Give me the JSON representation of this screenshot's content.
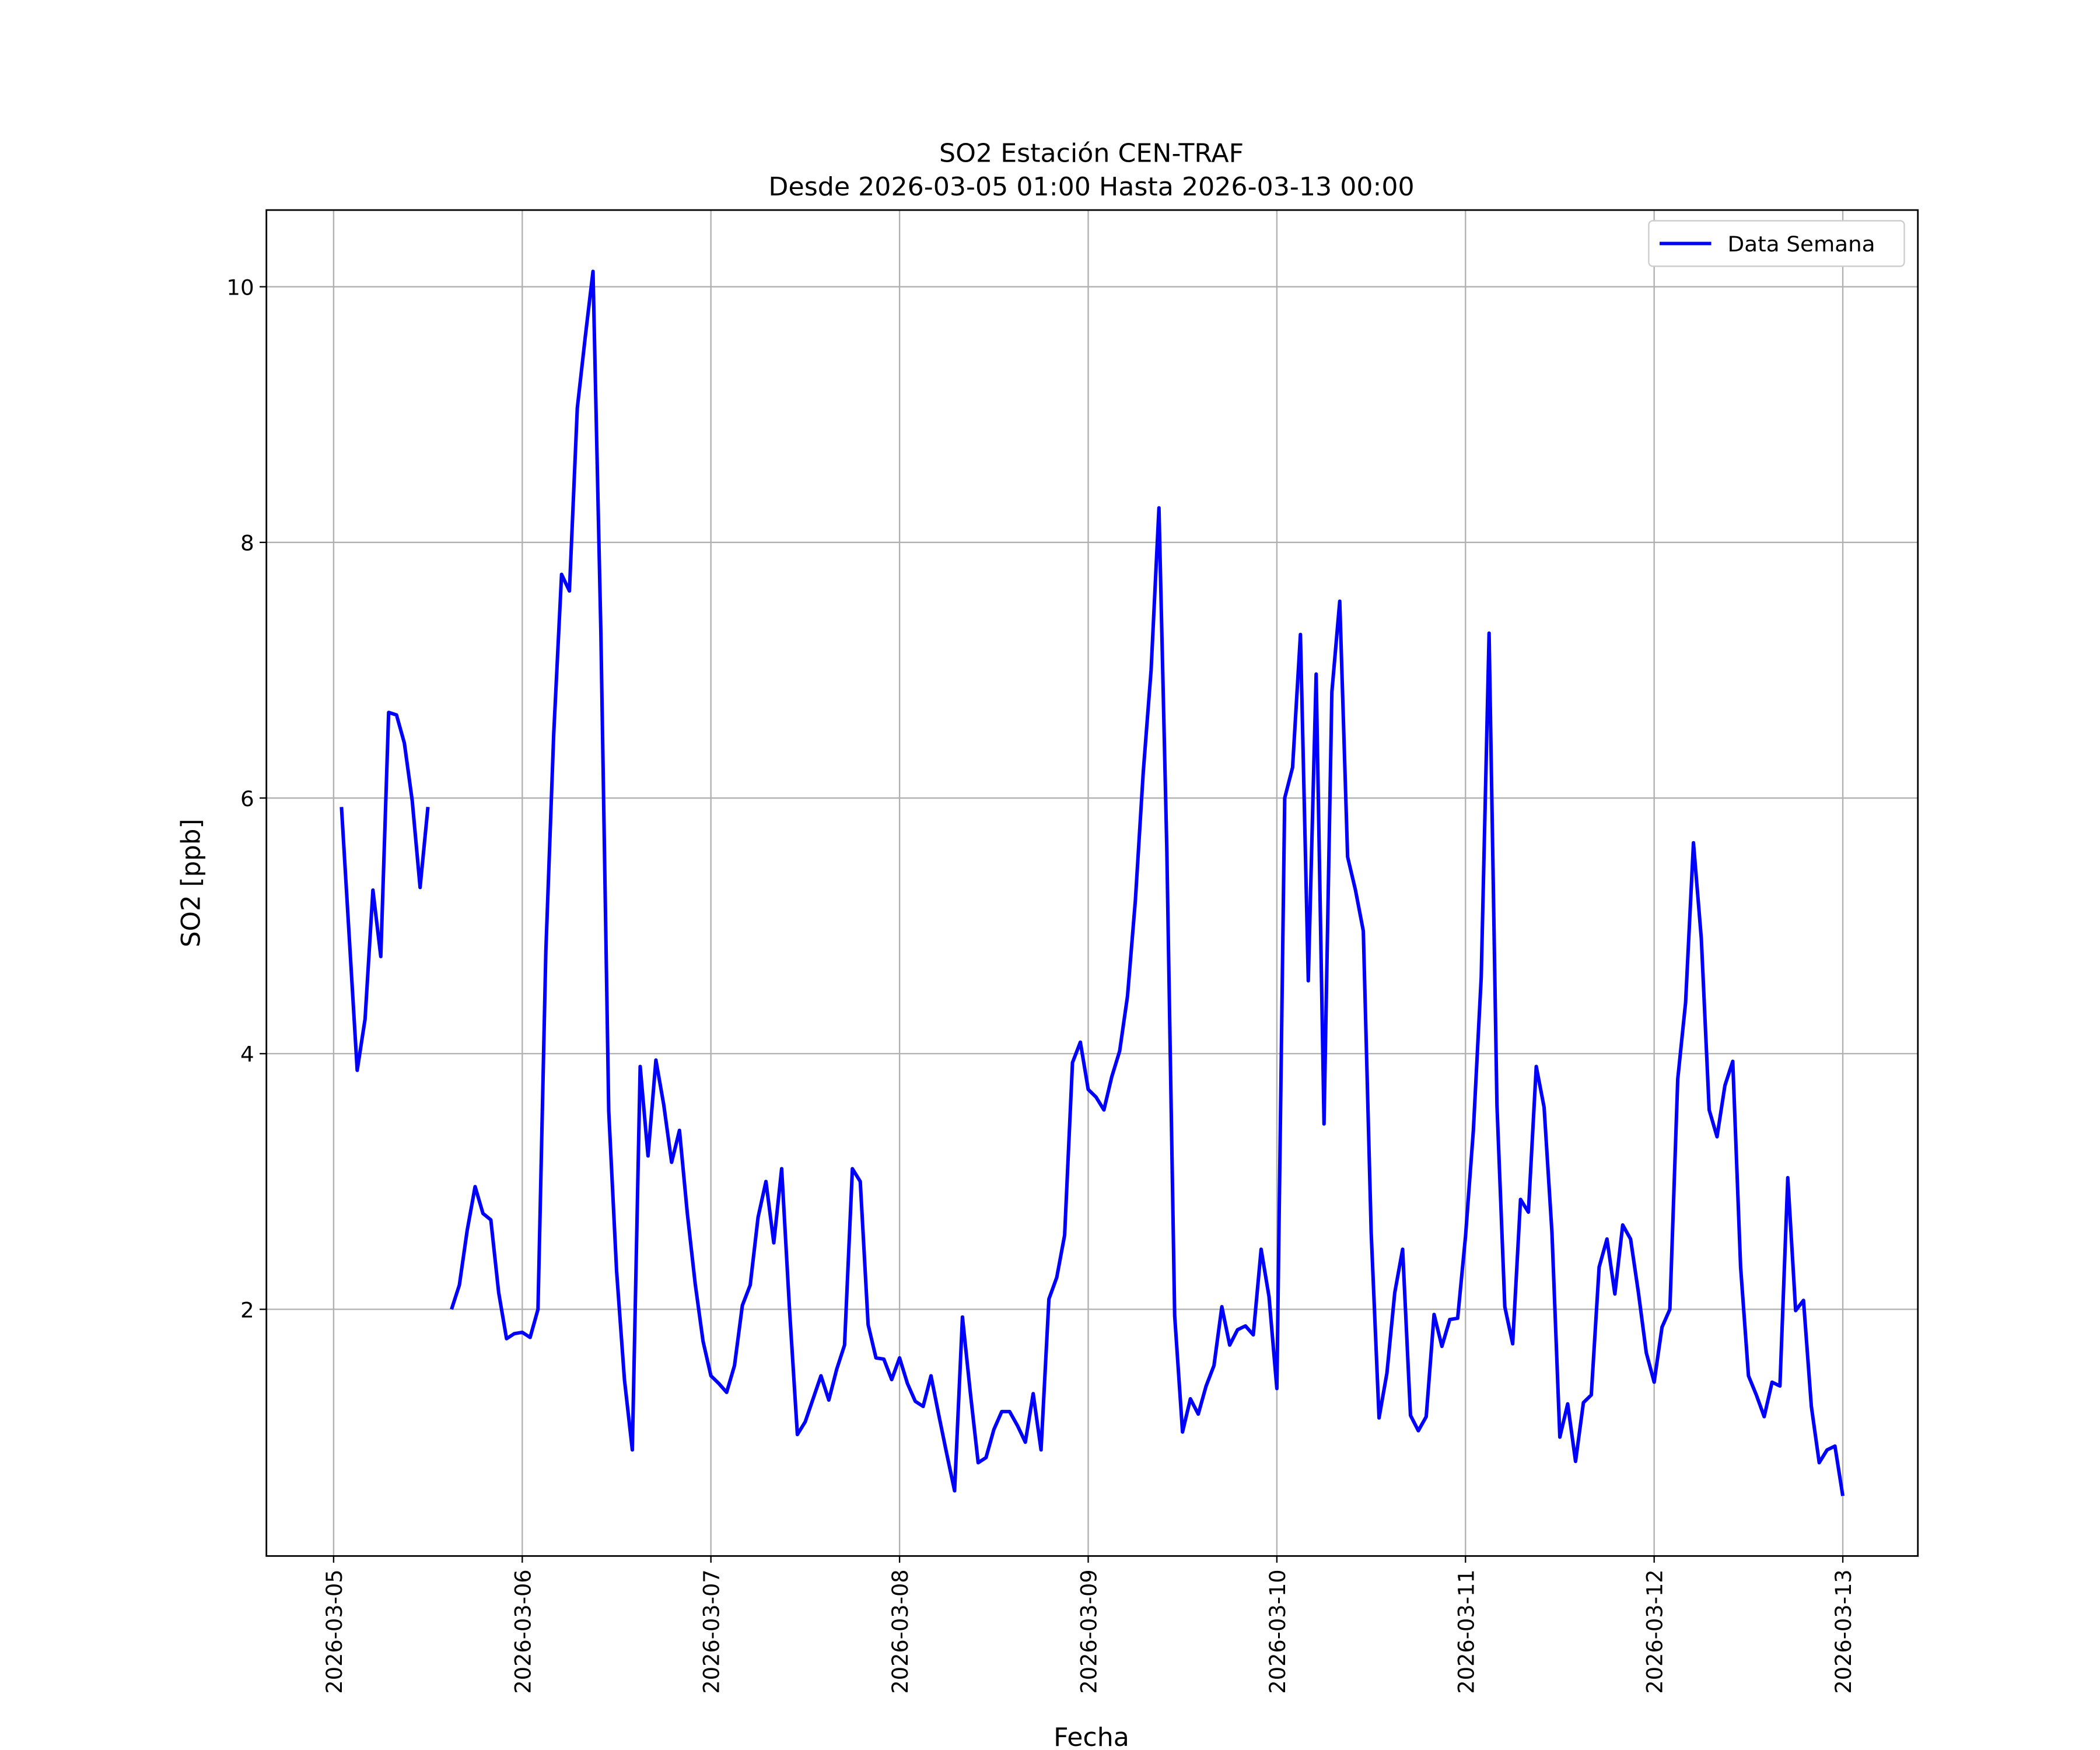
{
  "chart_data": {
    "type": "line",
    "title": "SO2 Estación CEN-TRAF",
    "subtitle": "Desde 2026-03-05 01:00 Hasta 2026-03-13 00:00",
    "xlabel": "Fecha",
    "ylabel": "SO2 [ppb]",
    "xlim": [
      "2026-03-04 15:27",
      "2026-03-13 09:33"
    ],
    "xticks": [
      "2026-03-05",
      "2026-03-06",
      "2026-03-07",
      "2026-03-08",
      "2026-03-09",
      "2026-03-10",
      "2026-03-11",
      "2026-03-12",
      "2026-03-13"
    ],
    "ylim": [
      0.07,
      10.6
    ],
    "yticks": [
      2,
      4,
      6,
      8,
      10
    ],
    "grid": true,
    "legend": "upper right",
    "x": [
      "2026-03-05 01:00",
      "2026-03-05 02:00",
      "2026-03-05 03:00",
      "2026-03-05 04:00",
      "2026-03-05 05:00",
      "2026-03-05 06:00",
      "2026-03-05 07:00",
      "2026-03-05 08:00",
      "2026-03-05 09:00",
      "2026-03-05 10:00",
      "2026-03-05 11:00",
      "2026-03-05 12:00",
      "2026-03-05 13:00",
      "2026-03-05 14:00",
      "2026-03-05 15:00",
      "2026-03-05 16:00",
      "2026-03-05 17:00",
      "2026-03-05 18:00",
      "2026-03-05 19:00",
      "2026-03-05 20:00",
      "2026-03-05 21:00",
      "2026-03-05 22:00",
      "2026-03-05 23:00",
      "2026-03-06 00:00",
      "2026-03-06 01:00",
      "2026-03-06 02:00",
      "2026-03-06 03:00",
      "2026-03-06 04:00",
      "2026-03-06 05:00",
      "2026-03-06 06:00",
      "2026-03-06 07:00",
      "2026-03-06 08:00",
      "2026-03-06 09:00",
      "2026-03-06 10:00",
      "2026-03-06 11:00",
      "2026-03-06 12:00",
      "2026-03-06 13:00",
      "2026-03-06 14:00",
      "2026-03-06 15:00",
      "2026-03-06 16:00",
      "2026-03-06 17:00",
      "2026-03-06 18:00",
      "2026-03-06 19:00",
      "2026-03-06 20:00",
      "2026-03-06 21:00",
      "2026-03-06 22:00",
      "2026-03-06 23:00",
      "2026-03-07 00:00",
      "2026-03-07 01:00",
      "2026-03-07 02:00",
      "2026-03-07 03:00",
      "2026-03-07 04:00",
      "2026-03-07 05:00",
      "2026-03-07 06:00",
      "2026-03-07 07:00",
      "2026-03-07 08:00",
      "2026-03-07 09:00",
      "2026-03-07 10:00",
      "2026-03-07 11:00",
      "2026-03-07 12:00",
      "2026-03-07 13:00",
      "2026-03-07 14:00",
      "2026-03-07 15:00",
      "2026-03-07 16:00",
      "2026-03-07 17:00",
      "2026-03-07 18:00",
      "2026-03-07 19:00",
      "2026-03-07 20:00",
      "2026-03-07 21:00",
      "2026-03-07 22:00",
      "2026-03-07 23:00",
      "2026-03-08 00:00",
      "2026-03-08 01:00",
      "2026-03-08 02:00",
      "2026-03-08 03:00",
      "2026-03-08 04:00",
      "2026-03-08 05:00",
      "2026-03-08 06:00",
      "2026-03-08 07:00",
      "2026-03-08 08:00",
      "2026-03-08 09:00",
      "2026-03-08 10:00",
      "2026-03-08 11:00",
      "2026-03-08 12:00",
      "2026-03-08 13:00",
      "2026-03-08 14:00",
      "2026-03-08 15:00",
      "2026-03-08 16:00",
      "2026-03-08 17:00",
      "2026-03-08 18:00",
      "2026-03-08 19:00",
      "2026-03-08 20:00",
      "2026-03-08 21:00",
      "2026-03-08 22:00",
      "2026-03-08 23:00",
      "2026-03-09 00:00",
      "2026-03-09 01:00",
      "2026-03-09 02:00",
      "2026-03-09 03:00",
      "2026-03-09 04:00",
      "2026-03-09 05:00",
      "2026-03-09 06:00",
      "2026-03-09 07:00",
      "2026-03-09 08:00",
      "2026-03-09 09:00",
      "2026-03-09 10:00",
      "2026-03-09 11:00",
      "2026-03-09 12:00",
      "2026-03-09 13:00",
      "2026-03-09 14:00",
      "2026-03-09 15:00",
      "2026-03-09 16:00",
      "2026-03-09 17:00",
      "2026-03-09 18:00",
      "2026-03-09 19:00",
      "2026-03-09 20:00",
      "2026-03-09 21:00",
      "2026-03-09 22:00",
      "2026-03-09 23:00",
      "2026-03-10 00:00",
      "2026-03-10 01:00",
      "2026-03-10 02:00",
      "2026-03-10 03:00",
      "2026-03-10 04:00",
      "2026-03-10 05:00",
      "2026-03-10 06:00",
      "2026-03-10 07:00",
      "2026-03-10 08:00",
      "2026-03-10 09:00",
      "2026-03-10 10:00",
      "2026-03-10 11:00",
      "2026-03-10 12:00",
      "2026-03-10 13:00",
      "2026-03-10 14:00",
      "2026-03-10 15:00",
      "2026-03-10 16:00",
      "2026-03-10 17:00",
      "2026-03-10 18:00",
      "2026-03-10 19:00",
      "2026-03-10 20:00",
      "2026-03-10 21:00",
      "2026-03-10 22:00",
      "2026-03-10 23:00",
      "2026-03-11 00:00",
      "2026-03-11 01:00",
      "2026-03-11 02:00",
      "2026-03-11 03:00",
      "2026-03-11 04:00",
      "2026-03-11 05:00",
      "2026-03-11 06:00",
      "2026-03-11 07:00",
      "2026-03-11 08:00",
      "2026-03-11 09:00",
      "2026-03-11 10:00",
      "2026-03-11 11:00",
      "2026-03-11 12:00",
      "2026-03-11 13:00",
      "2026-03-11 14:00",
      "2026-03-11 15:00",
      "2026-03-11 16:00",
      "2026-03-11 17:00",
      "2026-03-11 18:00",
      "2026-03-11 19:00",
      "2026-03-11 20:00",
      "2026-03-11 21:00",
      "2026-03-11 22:00",
      "2026-03-11 23:00",
      "2026-03-12 00:00",
      "2026-03-12 01:00",
      "2026-03-12 02:00",
      "2026-03-12 03:00",
      "2026-03-12 04:00",
      "2026-03-12 05:00",
      "2026-03-12 06:00",
      "2026-03-12 07:00",
      "2026-03-12 08:00",
      "2026-03-12 09:00",
      "2026-03-12 10:00",
      "2026-03-12 11:00",
      "2026-03-12 12:00",
      "2026-03-12 13:00",
      "2026-03-12 14:00",
      "2026-03-12 15:00",
      "2026-03-12 16:00",
      "2026-03-12 17:00",
      "2026-03-12 18:00",
      "2026-03-12 19:00",
      "2026-03-12 20:00",
      "2026-03-12 21:00",
      "2026-03-12 22:00",
      "2026-03-12 23:00",
      "2026-03-13 00:00"
    ],
    "series": [
      {
        "name": "Data Semana",
        "color": "#0000ff",
        "values": [
          5.93,
          4.9,
          3.87,
          4.27,
          5.28,
          4.76,
          6.67,
          6.65,
          6.43,
          5.98,
          5.3,
          5.93,
          null,
          null,
          2.0,
          2.19,
          2.62,
          2.96,
          2.75,
          2.7,
          2.13,
          1.77,
          1.81,
          1.82,
          1.78,
          2.0,
          4.8,
          6.5,
          7.75,
          7.62,
          9.05,
          9.6,
          10.12,
          7.3,
          3.55,
          2.3,
          1.45,
          0.9,
          3.9,
          3.2,
          3.95,
          3.6,
          3.15,
          3.4,
          2.75,
          2.2,
          1.75,
          1.48,
          1.42,
          1.35,
          1.56,
          2.03,
          2.19,
          2.72,
          3.0,
          2.52,
          3.1,
          2.0,
          1.02,
          1.12,
          1.3,
          1.48,
          1.29,
          1.53,
          1.72,
          3.1,
          3.0,
          1.88,
          1.62,
          1.61,
          1.45,
          1.62,
          1.42,
          1.28,
          1.24,
          1.48,
          1.17,
          0.87,
          0.58,
          1.94,
          1.35,
          0.8,
          0.84,
          1.06,
          1.2,
          1.2,
          1.09,
          0.96,
          1.34,
          0.9,
          2.08,
          2.25,
          2.58,
          3.93,
          4.09,
          3.72,
          3.66,
          3.56,
          3.82,
          4.02,
          4.45,
          5.2,
          6.2,
          7.0,
          8.27,
          5.6,
          1.95,
          1.04,
          1.3,
          1.18,
          1.4,
          1.56,
          2.02,
          1.72,
          1.84,
          1.87,
          1.8,
          2.47,
          2.1,
          1.38,
          6.0,
          6.24,
          7.28,
          4.57,
          6.97,
          3.45,
          6.83,
          7.54,
          5.54,
          5.28,
          4.96,
          2.6,
          1.15,
          1.5,
          2.13,
          2.47,
          1.17,
          1.05,
          1.16,
          1.96,
          1.71,
          1.92,
          1.93,
          2.57,
          3.4,
          4.6,
          7.29,
          3.6,
          2.02,
          1.73,
          2.86,
          2.76,
          3.9,
          3.58,
          2.6,
          1.0,
          1.26,
          0.81,
          1.27,
          1.33,
          2.33,
          2.55,
          2.12,
          2.66,
          2.55,
          2.13,
          1.66,
          1.43,
          1.86,
          2.0,
          3.8,
          4.4,
          5.65,
          4.9,
          3.56,
          3.35,
          3.75,
          3.94,
          2.33,
          1.48,
          1.33,
          1.16,
          1.43,
          1.4,
          3.03,
          1.99,
          2.07,
          1.24,
          0.8,
          0.9,
          0.93,
          0.54
        ]
      }
    ]
  }
}
